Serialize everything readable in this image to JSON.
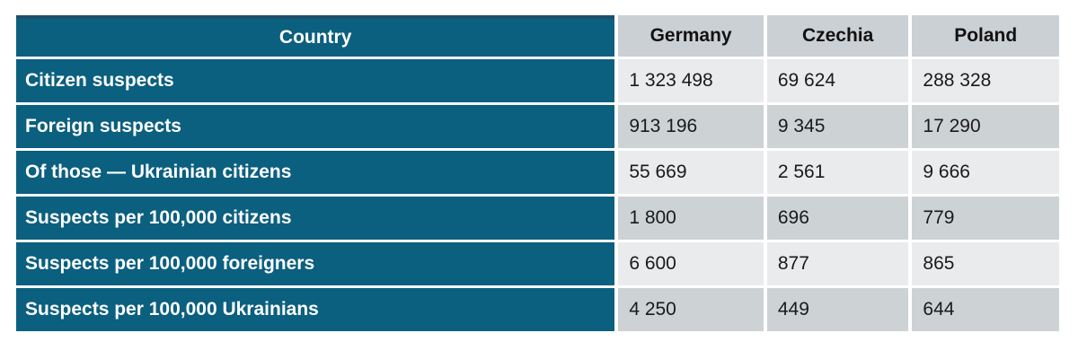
{
  "colors": {
    "teal": "#0B5F7F",
    "navy_top_border": "#1F4E69",
    "header_gray": "#CBD0D4",
    "row_light": "#E9EBEC",
    "row_dark": "#CDD2D5",
    "label_text": "#FFFFFF",
    "value_text": "#1A1A1A",
    "page_background": "#FFFFFF"
  },
  "table": {
    "corner_header": "Country",
    "column_headers": [
      "Germany",
      "Czechia",
      "Poland"
    ],
    "rows": [
      {
        "label": "Citizen suspects",
        "values": [
          "1 323 498",
          "69 624",
          "288 328"
        ]
      },
      {
        "label": "Foreign suspects",
        "values": [
          "913 196",
          "9 345",
          "17 290"
        ]
      },
      {
        "label": "Of those — Ukrainian citizens",
        "values": [
          "55 669",
          "2 561",
          "9 666"
        ]
      },
      {
        "label": "Suspects per 100,000 citizens",
        "values": [
          "1 800",
          "696",
          "779"
        ]
      },
      {
        "label": "Suspects per 100,000 foreigners",
        "values": [
          "6 600",
          "877",
          "865"
        ]
      },
      {
        "label": "Suspects per 100,000 Ukrainians",
        "values": [
          "4 250",
          "449",
          "644"
        ]
      }
    ]
  },
  "chart_data": {
    "type": "table",
    "title": "",
    "columns": [
      "Country",
      "Germany",
      "Czechia",
      "Poland"
    ],
    "rows": [
      {
        "label": "Citizen suspects",
        "Germany": 1323498,
        "Czechia": 69624,
        "Poland": 288328
      },
      {
        "label": "Foreign suspects",
        "Germany": 913196,
        "Czechia": 9345,
        "Poland": 17290
      },
      {
        "label": "Of those — Ukrainian citizens",
        "Germany": 55669,
        "Czechia": 2561,
        "Poland": 9666
      },
      {
        "label": "Suspects per 100,000 citizens",
        "Germany": 1800,
        "Czechia": 696,
        "Poland": 779
      },
      {
        "label": "Suspects per 100,000 foreigners",
        "Germany": 6600,
        "Czechia": 877,
        "Poland": 865
      },
      {
        "label": "Suspects per 100,000 Ukrainians",
        "Germany": 4250,
        "Czechia": 449,
        "Poland": 644
      }
    ]
  }
}
